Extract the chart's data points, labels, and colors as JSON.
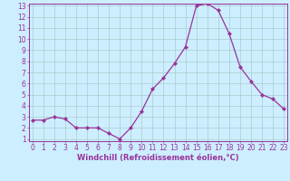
{
  "x": [
    0,
    1,
    2,
    3,
    4,
    5,
    6,
    7,
    8,
    9,
    10,
    11,
    12,
    13,
    14,
    15,
    16,
    17,
    18,
    19,
    20,
    21,
    22,
    23
  ],
  "y": [
    2.7,
    2.7,
    3.0,
    2.8,
    2.0,
    2.0,
    2.0,
    1.5,
    1.0,
    2.0,
    3.5,
    5.5,
    6.5,
    7.8,
    9.3,
    13.0,
    13.2,
    12.6,
    10.5,
    7.5,
    6.2,
    5.0,
    4.6,
    3.7
  ],
  "line_color": "#993399",
  "marker": "D",
  "markersize": 2.2,
  "linewidth": 0.9,
  "xlabel": "Windchill (Refroidissement éolien,°C)",
  "xlabel_fontsize": 6.0,
  "bg_color": "#cceeff",
  "grid_color": "#aacccc",
  "ylim": [
    1,
    13
  ],
  "xlim": [
    0,
    23
  ],
  "yticks": [
    1,
    2,
    3,
    4,
    5,
    6,
    7,
    8,
    9,
    10,
    11,
    12,
    13
  ],
  "xticks": [
    0,
    1,
    2,
    3,
    4,
    5,
    6,
    7,
    8,
    9,
    10,
    11,
    12,
    13,
    14,
    15,
    16,
    17,
    18,
    19,
    20,
    21,
    22,
    23
  ],
  "tick_fontsize": 5.5,
  "tick_color": "#993399",
  "spine_color": "#993399",
  "label_color": "#993399"
}
